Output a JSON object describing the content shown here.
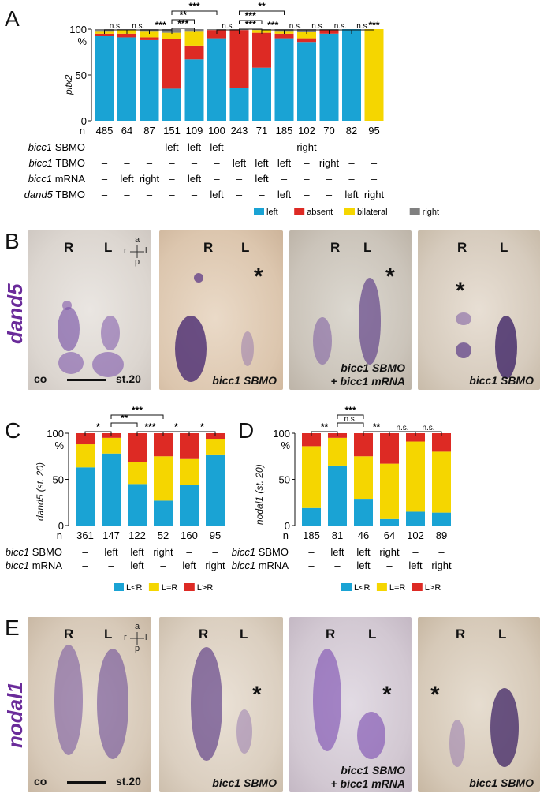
{
  "panels": {
    "A": "A",
    "B": "B",
    "C": "C",
    "D": "D",
    "E": "E"
  },
  "colors": {
    "left": "#1aa3d4",
    "absent": "#dd2a24",
    "bilateral": "#f5d600",
    "right": "#808080",
    "L<R": "#1aa3d4",
    "L=R": "#f5d600",
    "L>R": "#dd2a24"
  },
  "chart_data": [
    {
      "id": "A",
      "type": "bar",
      "stacked": true,
      "ylabel": "pitx2",
      "yunit": "%",
      "yticks": [
        "0",
        "50",
        "100"
      ],
      "ylim": [
        0,
        100
      ],
      "n_label": "n",
      "categories": [
        "485",
        "64",
        "87",
        "151",
        "109",
        "100",
        "243",
        "71",
        "185",
        "102",
        "70",
        "82",
        "95"
      ],
      "series": [
        {
          "name": "left",
          "values": [
            93,
            91,
            88,
            35,
            67,
            90,
            36,
            58,
            90,
            86,
            95,
            100,
            0
          ]
        },
        {
          "name": "absent",
          "values": [
            2,
            4,
            3,
            54,
            15,
            9,
            63,
            38,
            5,
            4,
            4,
            0,
            0
          ]
        },
        {
          "name": "bilateral",
          "values": [
            3,
            4,
            7,
            7,
            16,
            0,
            0,
            3,
            3,
            7,
            0,
            0,
            100
          ]
        },
        {
          "name": "right",
          "values": [
            2,
            1,
            2,
            4,
            2,
            1,
            1,
            1,
            2,
            3,
            1,
            0,
            0
          ]
        }
      ],
      "legend": [
        "left",
        "absent",
        "bilateral",
        "right"
      ],
      "rows": [
        {
          "label": "bicc1 SBMO",
          "values": [
            "–",
            "–",
            "–",
            "left",
            "left",
            "left",
            "–",
            "–",
            "–",
            "right",
            "–",
            "–",
            "–"
          ]
        },
        {
          "label": "bicc1 TBMO",
          "values": [
            "–",
            "–",
            "–",
            "–",
            "–",
            "–",
            "left",
            "left",
            "left",
            "–",
            "right",
            "–",
            "–"
          ]
        },
        {
          "label": "bicc1 mRNA",
          "values": [
            "–",
            "left",
            "right",
            "–",
            "left",
            "–",
            "–",
            "left",
            "–",
            "–",
            "–",
            "–",
            "–"
          ]
        },
        {
          "label": "dand5 TBMO",
          "values": [
            "–",
            "–",
            "–",
            "–",
            "–",
            "left",
            "–",
            "–",
            "left",
            "–",
            "–",
            "left",
            "right"
          ]
        }
      ],
      "significance": [
        "n.s.",
        "n.s.",
        "***",
        "***",
        "**",
        "***",
        "n.s.",
        "***",
        "**",
        "***",
        "***",
        "n.s.",
        "n.s.",
        "n.s.",
        "n.s.",
        "***"
      ]
    },
    {
      "id": "C",
      "type": "bar",
      "stacked": true,
      "ylabel": "dand5 (st. 20)",
      "yunit": "%",
      "yticks": [
        "0",
        "50",
        "100"
      ],
      "ylim": [
        0,
        100
      ],
      "n_label": "n",
      "categories": [
        "361",
        "147",
        "122",
        "52",
        "160",
        "95"
      ],
      "series": [
        {
          "name": "L<R",
          "values": [
            63,
            78,
            45,
            27,
            44,
            77
          ]
        },
        {
          "name": "L=R",
          "values": [
            25,
            17,
            24,
            48,
            28,
            17
          ]
        },
        {
          "name": "L>R",
          "values": [
            12,
            5,
            31,
            25,
            28,
            6
          ]
        }
      ],
      "legend": [
        "L<R",
        "L=R",
        "L>R"
      ],
      "rows": [
        {
          "label": "bicc1 SBMO",
          "values": [
            "–",
            "left",
            "left",
            "right",
            "–",
            "–"
          ]
        },
        {
          "label": "bicc1 mRNA",
          "values": [
            "–",
            "–",
            "left",
            "–",
            "left",
            "right"
          ]
        }
      ],
      "significance": [
        "*",
        "***",
        "**",
        "***",
        "*",
        "*"
      ]
    },
    {
      "id": "D",
      "type": "bar",
      "stacked": true,
      "ylabel": "nodal1 (st. 20)",
      "yunit": "%",
      "yticks": [
        "0",
        "50",
        "100"
      ],
      "ylim": [
        0,
        100
      ],
      "n_label": "n",
      "categories": [
        "185",
        "81",
        "46",
        "64",
        "102",
        "89"
      ],
      "series": [
        {
          "name": "L<R",
          "values": [
            19,
            65,
            29,
            7,
            15,
            14
          ]
        },
        {
          "name": "L=R",
          "values": [
            67,
            30,
            46,
            60,
            76,
            66
          ]
        },
        {
          "name": "L>R",
          "values": [
            14,
            5,
            25,
            33,
            9,
            20
          ]
        }
      ],
      "legend": [
        "L<R",
        "L=R",
        "L>R"
      ],
      "rows": [
        {
          "label": "bicc1 SBMO",
          "values": [
            "–",
            "left",
            "left",
            "right",
            "–",
            "–"
          ]
        },
        {
          "label": "bicc1 mRNA",
          "values": [
            "–",
            "–",
            "left",
            "–",
            "left",
            "right"
          ]
        }
      ],
      "significance": [
        "**",
        "***",
        "n.s.",
        "**",
        "n.s.",
        "n.s."
      ]
    }
  ],
  "photos_B": {
    "gene": "dand5",
    "R": "R",
    "L": "L",
    "axis": {
      "a": "a",
      "p": "p",
      "r": "r",
      "l": "l"
    },
    "co": "co",
    "stage": "st.20",
    "cap2": "bicc1 SBMO",
    "cap3a": "bicc1 SBMO",
    "cap3b": "+ bicc1 mRNA",
    "cap4": "bicc1 SBMO",
    "asterisk": "*"
  },
  "photos_E": {
    "gene": "nodal1",
    "R": "R",
    "L": "L",
    "axis": {
      "a": "a",
      "p": "p",
      "r": "r",
      "l": "l"
    },
    "co": "co",
    "stage": "st.20",
    "cap2": "bicc1 SBMO",
    "cap3a": "bicc1 SBMO",
    "cap3b": "+ bicc1 mRNA",
    "cap4": "bicc1 SBMO",
    "asterisk": "*"
  }
}
